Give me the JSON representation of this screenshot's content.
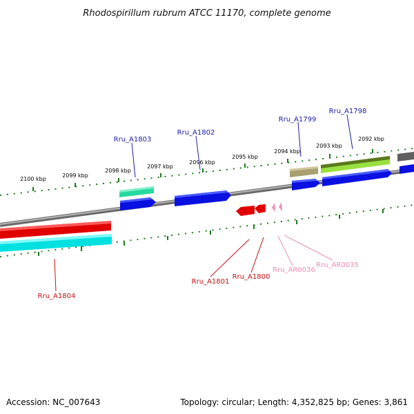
{
  "header": {
    "title": "Rhodospirillum rubrum ATCC 11170, complete genome"
  },
  "footer": {
    "accession": "Accession: NC_007643",
    "topology": "Topology: circular; Length: 4,352,825 bp; Genes: 3,861"
  },
  "colors": {
    "backbone": "#7a7a7a",
    "tick": "#1a7a1a",
    "label_blue": "#1a1aa8",
    "label_red": "#c41010",
    "label_pink": "#f08cb4"
  },
  "ticks": [
    {
      "label": "2100 kbp"
    },
    {
      "label": "2099 kbp"
    },
    {
      "label": "2098 kbp"
    },
    {
      "label": "2097 kbp"
    },
    {
      "label": "2096 kbp"
    },
    {
      "label": "2095 kbp"
    },
    {
      "label": "2094 kbp"
    },
    {
      "label": "2093 kbp"
    },
    {
      "label": "2092 kbp"
    }
  ],
  "gene_labels": [
    {
      "id": "Rru_A1803",
      "text": "Rru_A1803",
      "color": "#1a1aa8"
    },
    {
      "id": "Rru_A1802",
      "text": "Rru_A1802",
      "color": "#1a1aa8"
    },
    {
      "id": "Rru_A1799",
      "text": "Rru_A1799",
      "color": "#1a1aa8"
    },
    {
      "id": "Rru_A1798",
      "text": "Rru_A1798",
      "color": "#1a1aa8"
    },
    {
      "id": "Rru_A1804",
      "text": "Rru_A1804",
      "color": "#c41010"
    },
    {
      "id": "Rru_A1801",
      "text": "Rru_A1801",
      "color": "#c41010"
    },
    {
      "id": "Rru_A1800",
      "text": "Rru_A1800",
      "color": "#c41010"
    },
    {
      "id": "Rru_AR0036",
      "text": "Rru_AR0036",
      "color": "#f08cb4"
    },
    {
      "id": "Rru_AR0035",
      "text": "Rru_AR0035",
      "color": "#f08cb4"
    }
  ]
}
